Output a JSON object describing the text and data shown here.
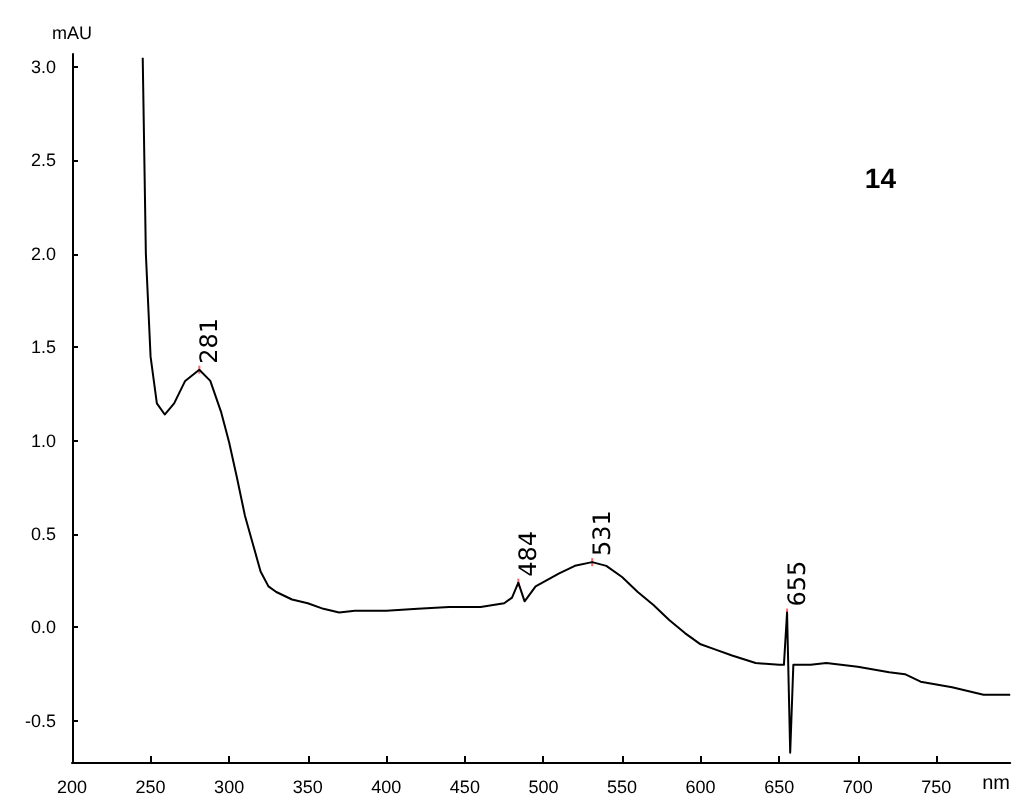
{
  "chart_data": {
    "type": "line",
    "xlabel": "nm",
    "ylabel": "mAU",
    "x": [
      245,
      247,
      250,
      254,
      259,
      265,
      272,
      281,
      288,
      295,
      300,
      305,
      310,
      315,
      320,
      325,
      330,
      340,
      350,
      360,
      370,
      380,
      400,
      420,
      440,
      460,
      475,
      480,
      484,
      488,
      495,
      510,
      520,
      531,
      540,
      550,
      560,
      570,
      580,
      590,
      600,
      610,
      620,
      635,
      650,
      653,
      655,
      657,
      659,
      670,
      680,
      700,
      720,
      730,
      740,
      760,
      780,
      797
    ],
    "series": [
      {
        "color": "#000000",
        "values": [
          3.05,
          2.0,
          1.45,
          1.2,
          1.14,
          1.2,
          1.32,
          1.38,
          1.32,
          1.15,
          0.99,
          0.8,
          0.6,
          0.45,
          0.3,
          0.22,
          0.19,
          0.15,
          0.13,
          0.1,
          0.08,
          0.09,
          0.09,
          0.1,
          0.11,
          0.11,
          0.13,
          0.16,
          0.24,
          0.14,
          0.22,
          0.29,
          0.33,
          0.35,
          0.33,
          0.27,
          0.19,
          0.12,
          0.04,
          -0.03,
          -0.09,
          -0.12,
          -0.15,
          -0.19,
          -0.2,
          -0.2,
          0.08,
          -0.67,
          -0.2,
          -0.2,
          -0.19,
          -0.21,
          -0.24,
          -0.25,
          -0.29,
          -0.32,
          -0.36,
          -0.36
        ]
      }
    ],
    "xlim": [
      200,
      797
    ],
    "xticks": [
      200,
      250,
      300,
      350,
      400,
      450,
      500,
      550,
      600,
      650,
      700,
      750
    ],
    "ylim": [
      -0.72,
      3.07
    ],
    "yticks": [
      {
        "value": -0.5,
        "label": "-0.5"
      },
      {
        "value": 0,
        "label": "0.0"
      },
      {
        "value": 0.5,
        "label": "0.5"
      },
      {
        "value": 1,
        "label": "1.0"
      },
      {
        "value": 1.5,
        "label": "1.5"
      },
      {
        "value": 2,
        "label": "2.0"
      },
      {
        "value": 2.5,
        "label": "2.5"
      },
      {
        "value": 3,
        "label": "3.0"
      }
    ],
    "grid": false,
    "marker": "none",
    "line_style": "solid",
    "annotations": [
      {
        "text": "281",
        "x": 281,
        "y": 1.38
      },
      {
        "text": "484",
        "x": 484,
        "y": 0.24
      },
      {
        "text": "531",
        "x": 531,
        "y": 0.35
      },
      {
        "text": "655",
        "x": 655,
        "y": 0.08
      },
      "14"
    ]
  }
}
